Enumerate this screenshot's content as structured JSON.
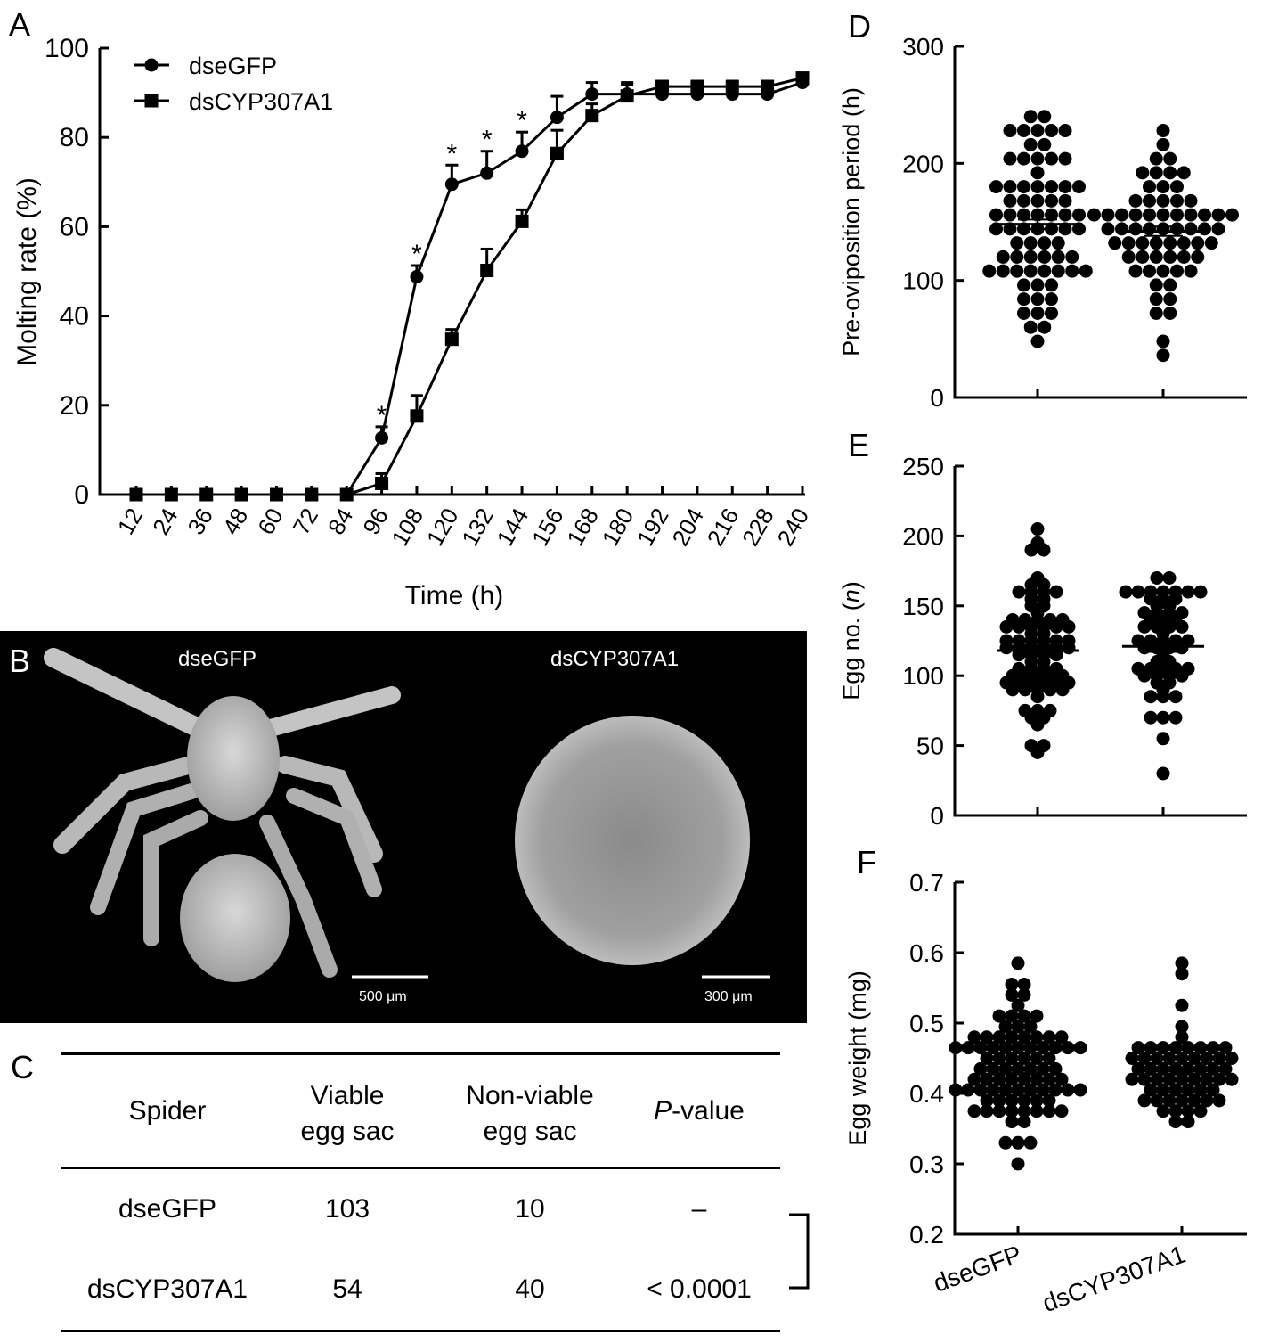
{
  "panels": {
    "a": "A",
    "b": "B",
    "c": "C",
    "d": "D",
    "e": "E",
    "f": "F"
  },
  "chart_data": [
    {
      "id": "A",
      "type": "line",
      "title": "",
      "xlabel": "Time (h)",
      "ylabel": "Molting rate (%)",
      "ylim": [
        0,
        100
      ],
      "yticks": [
        0,
        20,
        40,
        60,
        80,
        100
      ],
      "x": [
        12,
        24,
        36,
        48,
        60,
        72,
        84,
        96,
        108,
        120,
        132,
        144,
        156,
        168,
        180,
        192,
        204,
        216,
        228,
        240
      ],
      "legend": "top-left",
      "series": [
        {
          "name": "dseGFP",
          "marker": "circle",
          "values": [
            0,
            0,
            0,
            0,
            0,
            0,
            0,
            12.7,
            48.8,
            69.5,
            72,
            76.9,
            84.5,
            89.7,
            89.7,
            89.7,
            89.7,
            89.7,
            89.7,
            92.3
          ],
          "errors": [
            0,
            0,
            0,
            0,
            0,
            0,
            0,
            2.5,
            2.5,
            4.3,
            4.9,
            4.3,
            4.7,
            2.6,
            2.6,
            1.5,
            1.5,
            1.5,
            1.5,
            0.8
          ]
        },
        {
          "name": "dsCYP307A1",
          "marker": "square",
          "values": [
            0,
            0,
            0,
            0,
            0,
            0,
            0,
            2.5,
            17.6,
            34.8,
            50.2,
            61.2,
            76.4,
            84.9,
            89.3,
            91.4,
            91.4,
            91.4,
            91.4,
            93.3
          ],
          "errors": [
            0,
            0,
            0,
            0,
            0,
            0,
            0,
            2.2,
            4.6,
            2.2,
            4.8,
            2.6,
            5.2,
            2.6,
            2.6,
            1.2,
            1.2,
            1.2,
            1.2,
            0.5
          ]
        }
      ],
      "significance": [
        {
          "x": 96,
          "label": "*"
        },
        {
          "x": 108,
          "label": "*"
        },
        {
          "x": 120,
          "label": "*"
        },
        {
          "x": 132,
          "label": "*"
        },
        {
          "x": 144,
          "label": "*"
        }
      ]
    },
    {
      "id": "D",
      "type": "scatter",
      "ylabel": "Pre-oviposition period (h)",
      "ylim": [
        0,
        300
      ],
      "yticks": [
        0,
        100,
        200,
        300
      ],
      "categories": [
        "dseGFP",
        "dsCYP307A1"
      ],
      "series": [
        {
          "name": "dseGFP",
          "mean": 148,
          "sem": 4,
          "rows": [
            [
              240,
              2
            ],
            [
              228,
              5
            ],
            [
              216,
              2
            ],
            [
              204,
              5
            ],
            [
              192,
              1
            ],
            [
              180,
              7
            ],
            [
              168,
              5
            ],
            [
              156,
              7
            ],
            [
              144,
              7
            ],
            [
              132,
              4
            ],
            [
              120,
              6
            ],
            [
              108,
              8
            ],
            [
              96,
              3
            ],
            [
              84,
              3
            ],
            [
              72,
              3
            ],
            [
              60,
              2
            ],
            [
              48,
              1
            ]
          ]
        },
        {
          "name": "dsCYP307A1",
          "mean": 142,
          "sem": 4,
          "rows": [
            [
              228,
              1
            ],
            [
              216,
              1
            ],
            [
              204,
              2
            ],
            [
              192,
              4
            ],
            [
              180,
              3
            ],
            [
              168,
              5
            ],
            [
              156,
              11
            ],
            [
              144,
              9
            ],
            [
              132,
              8
            ],
            [
              120,
              6
            ],
            [
              108,
              5
            ],
            [
              96,
              2
            ],
            [
              84,
              2
            ],
            [
              72,
              2
            ],
            [
              48,
              1
            ],
            [
              36,
              1
            ]
          ]
        }
      ]
    },
    {
      "id": "E",
      "type": "scatter",
      "ylabel": "Egg no. (n)",
      "ylabel_plain": "Egg no. (",
      "ylabel_italic": "n",
      "ylabel_close": ")",
      "ylim": [
        0,
        250
      ],
      "yticks": [
        0,
        50,
        100,
        150,
        200,
        250
      ],
      "categories": [
        "dseGFP",
        "dsCYP307A1"
      ],
      "series": [
        {
          "name": "dseGFP",
          "mean": 118,
          "sem": 4,
          "points": [
            207,
            193,
            191,
            188,
            168,
            164,
            163,
            162,
            161,
            158,
            158,
            157,
            155,
            150,
            150,
            145,
            142,
            141,
            141,
            140,
            140,
            137,
            137,
            136,
            135,
            133,
            133,
            131,
            129,
            127,
            125,
            124,
            124,
            123,
            123,
            122,
            121,
            120,
            120,
            119,
            118,
            117,
            116,
            115,
            113,
            110,
            108,
            106,
            105,
            104,
            103,
            102,
            101,
            100,
            99,
            98,
            97,
            96,
            95,
            95,
            94,
            93,
            92,
            91,
            90,
            89,
            88,
            86,
            76,
            74,
            73,
            72,
            68,
            66,
            52,
            51,
            46
          ]
        },
        {
          "name": "dsCYP307A1",
          "mean": 121,
          "sem": 4,
          "points": [
            169,
            169,
            162,
            161,
            160,
            160,
            159,
            159,
            158,
            157,
            156,
            155,
            152,
            149,
            146,
            145,
            143,
            143,
            142,
            140,
            139,
            135,
            135,
            134,
            134,
            129,
            127,
            126,
            125,
            124,
            123,
            121,
            120,
            120,
            119,
            113,
            111,
            109,
            107,
            107,
            104,
            103,
            103,
            102,
            100,
            99,
            98,
            97,
            96,
            91,
            86,
            85,
            84,
            72,
            68,
            68,
            54,
            28
          ]
        }
      ]
    },
    {
      "id": "F",
      "type": "scatter",
      "ylabel": "Egg weight (mg)",
      "ylim": [
        0.2,
        0.7
      ],
      "yticks": [
        "0.2",
        "0.3",
        "0.4",
        "0.5",
        "0.6",
        "0.7"
      ],
      "categories": [
        "dseGFP",
        "dsCYP307A1"
      ],
      "series": [
        {
          "name": "dseGFP",
          "mean": 0.433,
          "sem": 0.004,
          "points": [
            0.58,
            0.56,
            0.555,
            0.54,
            0.538,
            0.527,
            0.514,
            0.508,
            0.506,
            0.504,
            0.49,
            0.49,
            0.488,
            0.487,
            0.486,
            0.48,
            0.477,
            0.474,
            0.471,
            0.469,
            0.467,
            0.466,
            0.465,
            0.465,
            0.466,
            0.468,
            0.47,
            0.473,
            0.476,
            0.48,
            0.46,
            0.46,
            0.456,
            0.45,
            0.45,
            0.45,
            0.447,
            0.443,
            0.44,
            0.44,
            0.438,
            0.435,
            0.432,
            0.43,
            0.428,
            0.426,
            0.424,
            0.422,
            0.42,
            0.42,
            0.418,
            0.416,
            0.414,
            0.412,
            0.41,
            0.408,
            0.406,
            0.404,
            0.402,
            0.4,
            0.4,
            0.398,
            0.397,
            0.396,
            0.395,
            0.395,
            0.396,
            0.398,
            0.4,
            0.385,
            0.382,
            0.38,
            0.38,
            0.378,
            0.377,
            0.376,
            0.375,
            0.374,
            0.365,
            0.362,
            0.325,
            0.325,
            0.325,
            0.305
          ]
        },
        {
          "name": "dsCYP307A1",
          "mean": 0.432,
          "sem": 0.004,
          "points": [
            0.583,
            0.575,
            0.53,
            0.492,
            0.484,
            0.468,
            0.468,
            0.468,
            0.468,
            0.466,
            0.466,
            0.46,
            0.458,
            0.456,
            0.455,
            0.454,
            0.452,
            0.45,
            0.448,
            0.446,
            0.445,
            0.443,
            0.44,
            0.438,
            0.437,
            0.436,
            0.434,
            0.432,
            0.43,
            0.428,
            0.426,
            0.424,
            0.422,
            0.42,
            0.42,
            0.418,
            0.416,
            0.415,
            0.414,
            0.412,
            0.41,
            0.408,
            0.405,
            0.4,
            0.398,
            0.396,
            0.394,
            0.392,
            0.39,
            0.388,
            0.385,
            0.384,
            0.38,
            0.377,
            0.37,
            0.368,
            0.365,
            0.363
          ]
        }
      ]
    }
  ],
  "photo": {
    "left_label": "dseGFP",
    "right_label": "dsCYP307A1",
    "left_scale": "500 μm",
    "right_scale": "300 μm"
  },
  "table": {
    "headers": [
      {
        "line1": "Spider",
        "line2": ""
      },
      {
        "line1": "Viable",
        "line2": "egg sac"
      },
      {
        "line1": "Non-viable",
        "line2": "egg sac"
      },
      {
        "line1_italic": "P",
        "line1": "-value",
        "line2": ""
      }
    ],
    "rows": [
      {
        "spider": "dseGFP",
        "viable": "103",
        "nonviable": "10",
        "p": "–"
      },
      {
        "spider": "dsCYP307A1",
        "viable": "54",
        "nonviable": "40",
        "p": "< 0.0001"
      }
    ]
  }
}
